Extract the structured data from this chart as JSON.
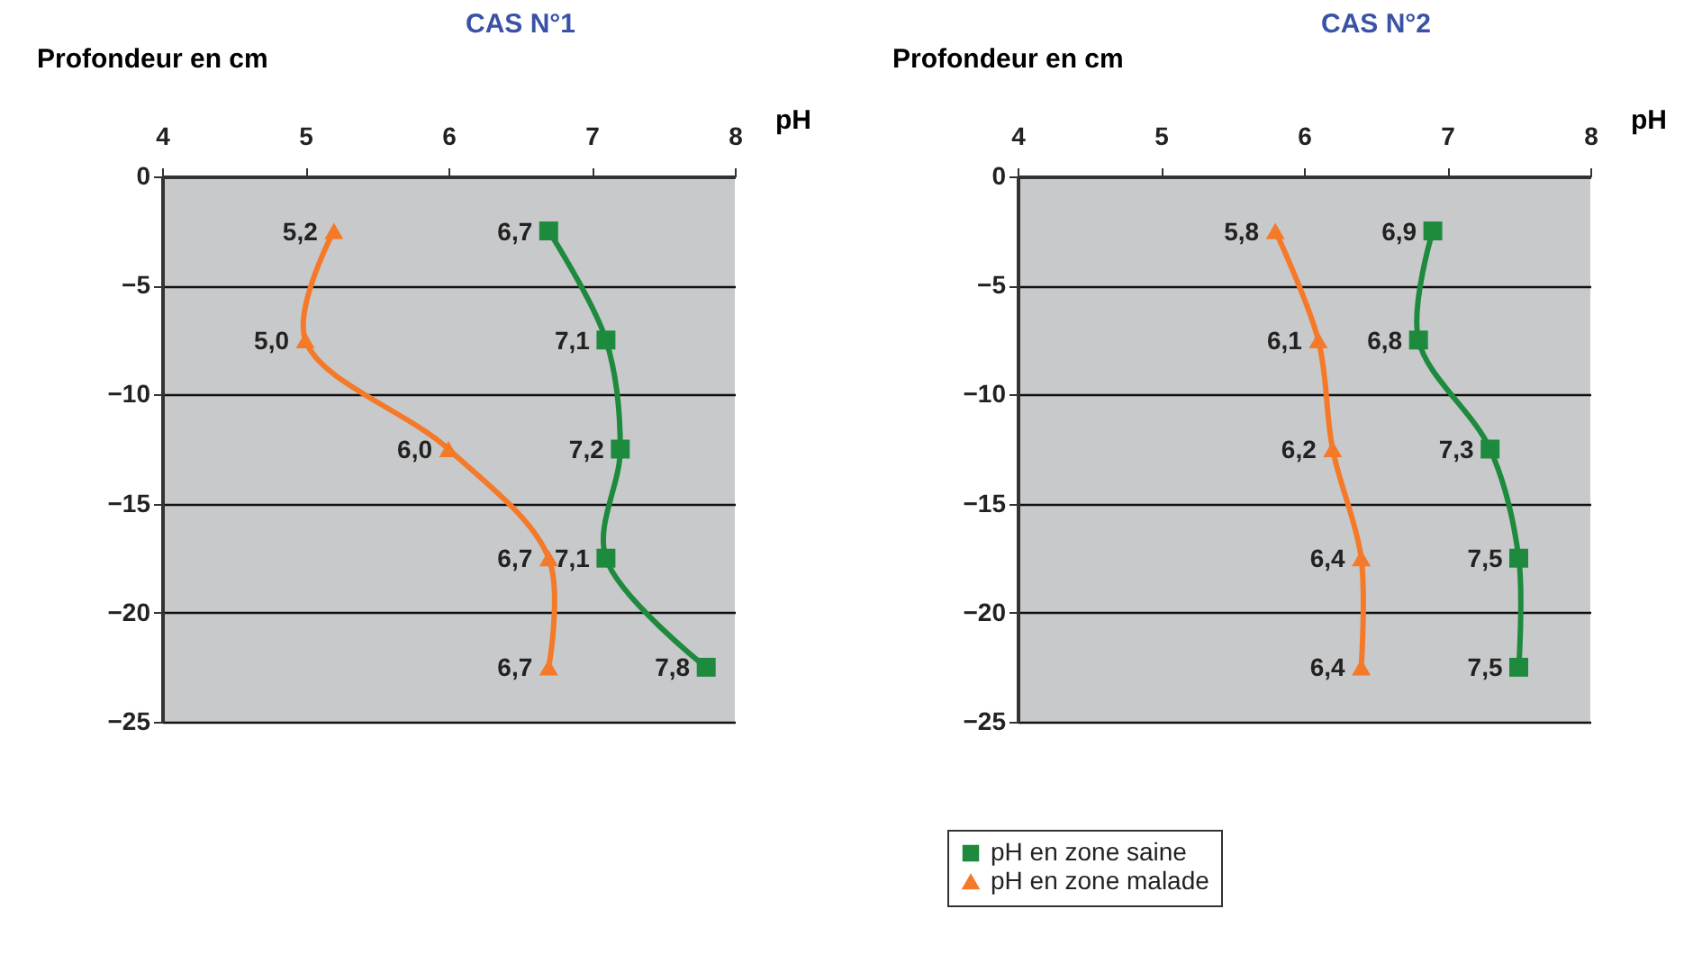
{
  "chart_data": [
    {
      "type": "line",
      "orientation": "horizontal",
      "title": "CAS N°1",
      "xlabel": "pH",
      "ylabel": "Profondeur en cm",
      "xlim": [
        4,
        8
      ],
      "xticks": [
        4,
        5,
        6,
        7,
        8
      ],
      "ylim": [
        -25,
        0
      ],
      "yticks": [
        0,
        -5,
        -10,
        -15,
        -20,
        -25
      ],
      "grid": "y",
      "legend": "bottom",
      "line_style": "solid",
      "series": [
        {
          "name": "pH en zone saine",
          "color": "#1e8a3e",
          "marker": "square",
          "values": [
            6.7,
            7.1,
            7.2,
            7.1,
            7.8
          ],
          "x": [
            -2.5,
            -7.5,
            -12.5,
            -17.5,
            -22.5
          ],
          "value_labels": [
            "6,7",
            "7,1",
            "7,2",
            "7,1",
            "7,8"
          ]
        },
        {
          "name": "pH en zone malade",
          "color": "#f47a2a",
          "marker": "triangle",
          "values": [
            5.2,
            5.0,
            6.0,
            6.7,
            6.7
          ],
          "x": [
            -2.5,
            -7.5,
            -12.5,
            -17.5,
            -22.5
          ],
          "value_labels": [
            "5,2",
            "5,0",
            "6,0",
            "6,7",
            "6,7"
          ]
        }
      ]
    },
    {
      "type": "line",
      "orientation": "horizontal",
      "title": "CAS N°2",
      "xlabel": "pH",
      "ylabel": "Profondeur en cm",
      "xlim": [
        4,
        8
      ],
      "xticks": [
        4,
        5,
        6,
        7,
        8
      ],
      "ylim": [
        -25,
        0
      ],
      "yticks": [
        0,
        -5,
        -10,
        -15,
        -20,
        -25
      ],
      "grid": "y",
      "legend": "bottom",
      "line_style": "solid",
      "series": [
        {
          "name": "pH en zone saine",
          "color": "#1e8a3e",
          "marker": "square",
          "values": [
            6.9,
            6.8,
            7.3,
            7.5,
            7.5
          ],
          "x": [
            -2.5,
            -7.5,
            -12.5,
            -17.5,
            -22.5
          ],
          "value_labels": [
            "6,9",
            "6,8",
            "7,3",
            "7,5",
            "7,5"
          ]
        },
        {
          "name": "pH en zone malade",
          "color": "#f47a2a",
          "marker": "triangle",
          "values": [
            5.8,
            6.1,
            6.2,
            6.4,
            6.4
          ],
          "x": [
            -2.5,
            -7.5,
            -12.5,
            -17.5,
            -22.5
          ],
          "value_labels": [
            "5,8",
            "6,1",
            "6,2",
            "6,4",
            "6,4"
          ]
        }
      ]
    }
  ]
}
